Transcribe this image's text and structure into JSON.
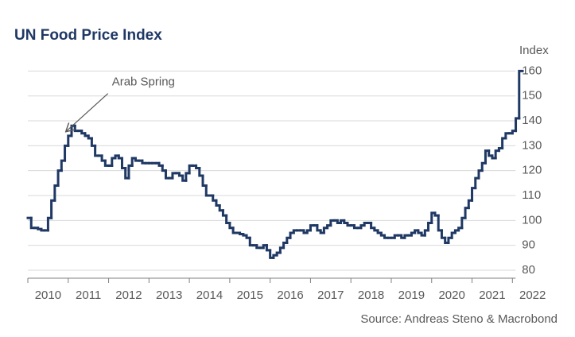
{
  "chart_data": {
    "type": "line",
    "step": "post",
    "title": "UN Food Price Index",
    "y_axis_label": "Index",
    "source": "Source: Andreas Steno & Macrobond",
    "annotation": {
      "text": "Arab Spring",
      "x": 2010.9,
      "y": 135
    },
    "xlim": [
      2010,
      2022.25
    ],
    "xticks": [
      {
        "value": 2010,
        "label": "2010"
      },
      {
        "value": 2011,
        "label": "2011"
      },
      {
        "value": 2012,
        "label": "2012"
      },
      {
        "value": 2013,
        "label": "2013"
      },
      {
        "value": 2014,
        "label": "2014"
      },
      {
        "value": 2015,
        "label": "2015"
      },
      {
        "value": 2016,
        "label": "2016"
      },
      {
        "value": 2017,
        "label": "2017"
      },
      {
        "value": 2018,
        "label": "2018"
      },
      {
        "value": 2019,
        "label": "2019"
      },
      {
        "value": 2020,
        "label": "2020"
      },
      {
        "value": 2021,
        "label": "2021"
      },
      {
        "value": 2022,
        "label": "2022"
      }
    ],
    "ylim": [
      76.8,
      163
    ],
    "yticks": [
      80,
      90,
      100,
      110,
      120,
      130,
      140,
      150,
      160
    ],
    "grid": true,
    "series": [
      {
        "name": "UN Food Price Index",
        "color": "#1f3864",
        "start": 2010,
        "step_months": 1,
        "values": [
          101,
          97,
          97,
          96.5,
          96,
          96,
          101,
          108,
          114,
          120,
          124,
          130,
          134,
          138,
          136,
          136,
          135,
          134,
          133,
          130,
          126,
          126,
          124,
          122,
          122,
          125,
          126,
          125,
          121,
          117,
          122,
          125,
          124,
          124,
          123,
          123,
          123,
          123,
          123,
          122,
          120,
          117,
          117,
          119,
          119,
          118,
          116,
          119,
          122,
          122,
          121,
          118,
          114,
          110,
          110,
          108,
          106,
          104,
          102,
          99,
          97,
          95,
          95,
          94.5,
          94,
          93,
          90,
          90,
          89,
          89,
          90,
          88,
          85,
          86,
          87,
          89,
          91,
          93,
          95,
          96,
          96,
          96,
          95,
          96,
          98,
          98,
          96,
          95,
          97,
          98,
          100,
          100,
          99,
          100,
          99,
          98,
          98,
          97,
          97,
          98,
          99,
          99,
          97,
          96,
          95,
          94,
          93,
          93,
          93,
          94,
          94,
          93,
          94,
          94,
          95,
          96,
          95,
          94,
          96,
          99,
          103,
          102,
          96,
          93,
          91,
          93,
          95,
          96,
          97,
          101,
          105,
          108,
          113,
          117,
          120,
          123,
          128,
          126,
          125,
          128,
          129,
          133,
          135,
          135,
          136,
          141,
          160
        ]
      }
    ]
  }
}
